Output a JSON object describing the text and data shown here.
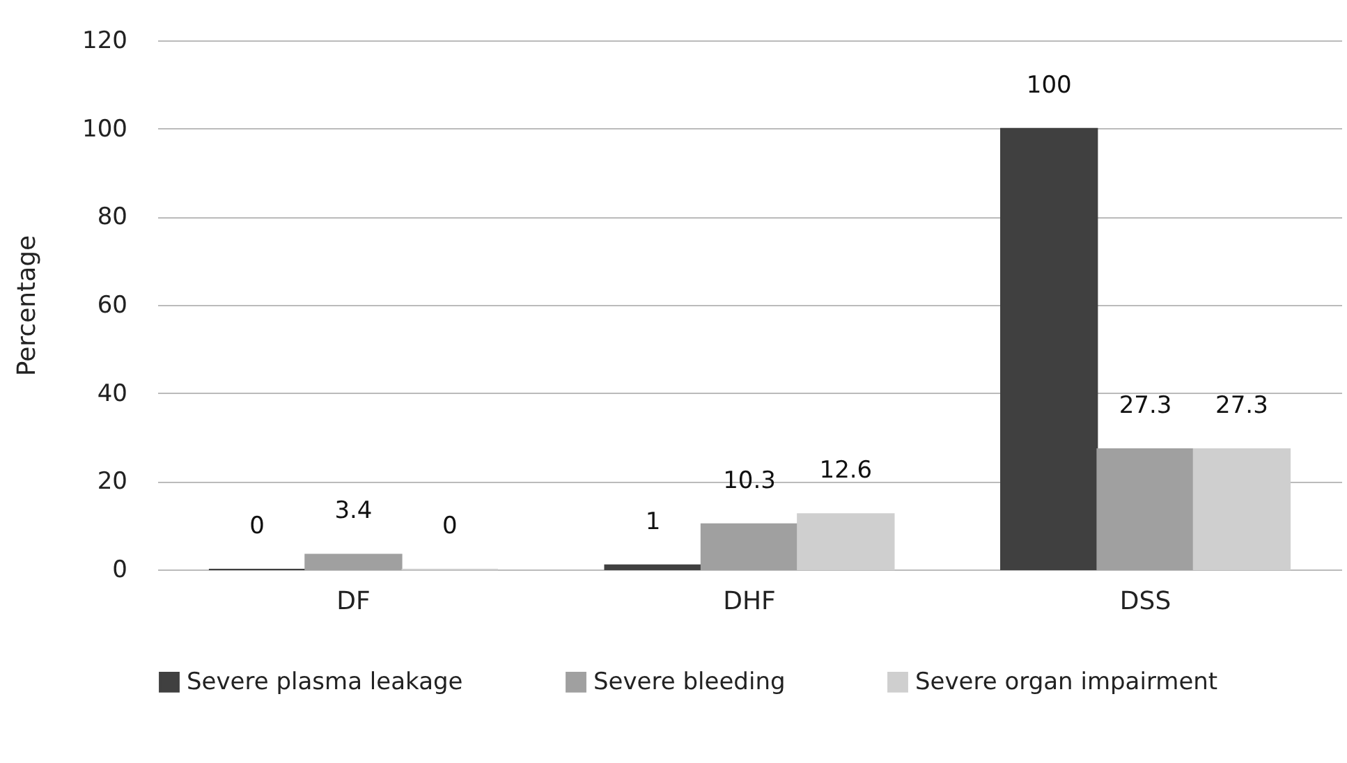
{
  "chart_data": {
    "type": "bar",
    "ylabel": "Percentage",
    "categories": [
      "DF",
      "DHF",
      "DSS"
    ],
    "series": [
      {
        "name": "Severe plasma leakage",
        "color": "#404040",
        "values": [
          0,
          1,
          100
        ]
      },
      {
        "name": "Severe bleeding",
        "color": "#a0a0a0",
        "values": [
          3.4,
          10.3,
          27.3
        ]
      },
      {
        "name": "Severe organ impairment",
        "color": "#cfcfcf",
        "values": [
          0,
          12.6,
          27.3
        ]
      }
    ],
    "ylim": [
      0,
      120
    ],
    "yticks": [
      0,
      20,
      40,
      60,
      80,
      100,
      120
    ],
    "grid": "y",
    "legend": "bottom",
    "data_labels": true
  }
}
